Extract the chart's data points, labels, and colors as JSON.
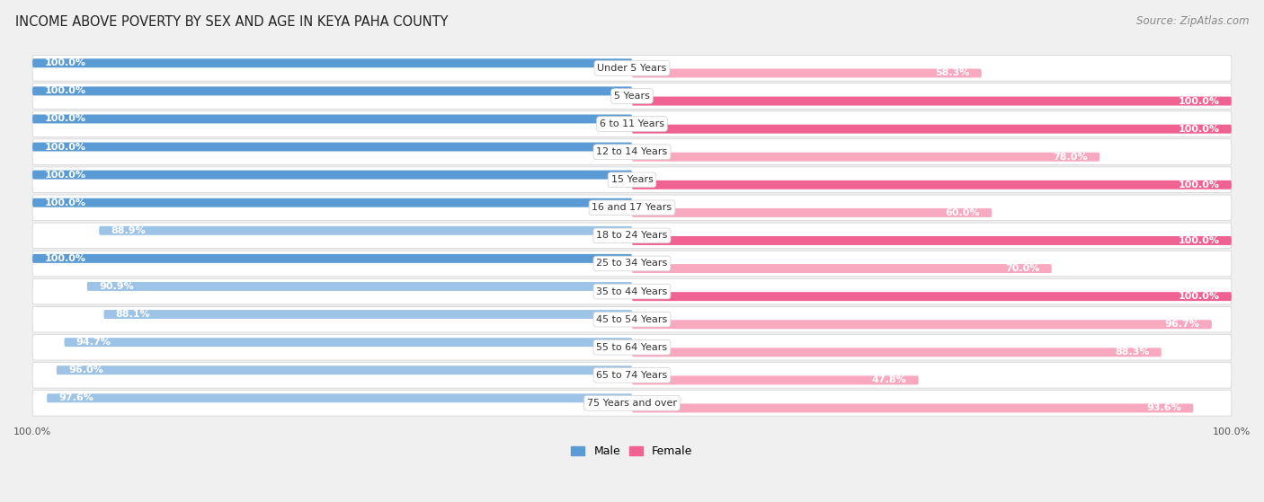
{
  "title": "INCOME ABOVE POVERTY BY SEX AND AGE IN KEYA PAHA COUNTY",
  "source": "Source: ZipAtlas.com",
  "categories": [
    "Under 5 Years",
    "5 Years",
    "6 to 11 Years",
    "12 to 14 Years",
    "15 Years",
    "16 and 17 Years",
    "18 to 24 Years",
    "25 to 34 Years",
    "35 to 44 Years",
    "45 to 54 Years",
    "55 to 64 Years",
    "65 to 74 Years",
    "75 Years and over"
  ],
  "male_values": [
    100.0,
    100.0,
    100.0,
    100.0,
    100.0,
    100.0,
    88.9,
    100.0,
    90.9,
    88.1,
    94.7,
    96.0,
    97.6
  ],
  "female_values": [
    58.3,
    100.0,
    100.0,
    78.0,
    100.0,
    60.0,
    100.0,
    70.0,
    100.0,
    96.7,
    88.3,
    47.8,
    93.6
  ],
  "male_color_full": "#5b9bd5",
  "male_color_partial": "#9dc3e6",
  "female_color_full": "#f06292",
  "female_color_partial": "#f8a9c0",
  "bg_color": "#f0f0f0",
  "row_bg_color": "#e8e8e8",
  "bar_bg_color": "#e0e0e0",
  "male_label": "Male",
  "female_label": "Female",
  "title_fontsize": 10.5,
  "source_fontsize": 8.5,
  "value_fontsize": 8,
  "category_fontsize": 8,
  "axis_label_fontsize": 8
}
